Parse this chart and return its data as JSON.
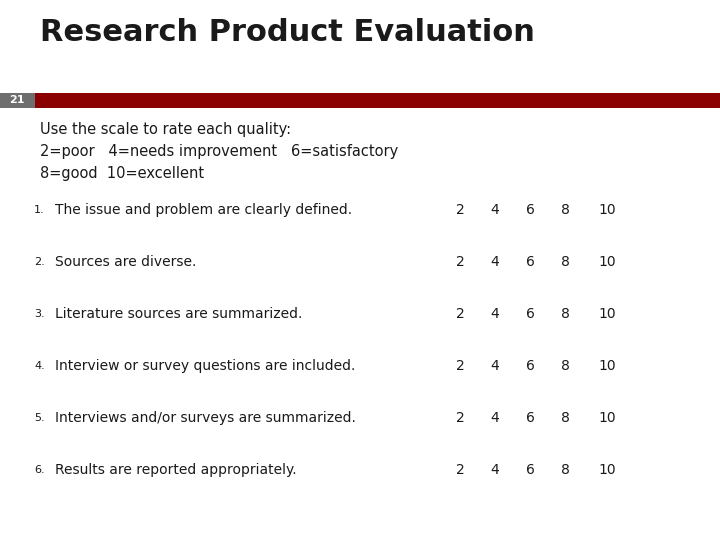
{
  "title": "Research Product Evaluation",
  "slide_number": "21",
  "banner_color": "#8B0000",
  "slide_num_bg": "#6e6e6e",
  "background_color": "#FFFFFF",
  "title_color": "#1a1a1a",
  "title_fontsize": 22,
  "scale_description_lines": [
    "Use the scale to rate each quality:",
    "2=poor   4=needs improvement   6=satisfactory",
    "8=good  10=excellent"
  ],
  "items": [
    "The issue and problem are clearly defined.",
    "Sources are diverse.",
    "Literature sources are summarized.",
    "Interview or survey questions are included.",
    "Interviews and/or surveys are summarized.",
    "Results are reported appropriately."
  ],
  "scale_values": [
    "2",
    "4",
    "6",
    "8",
    "10"
  ],
  "text_color": "#1a1a1a",
  "scale_color": "#1a1a1a",
  "item_fontsize": 10,
  "scale_fontsize": 10,
  "desc_fontsize": 10.5,
  "number_fontsize": 8,
  "slide_num_fontsize": 8
}
